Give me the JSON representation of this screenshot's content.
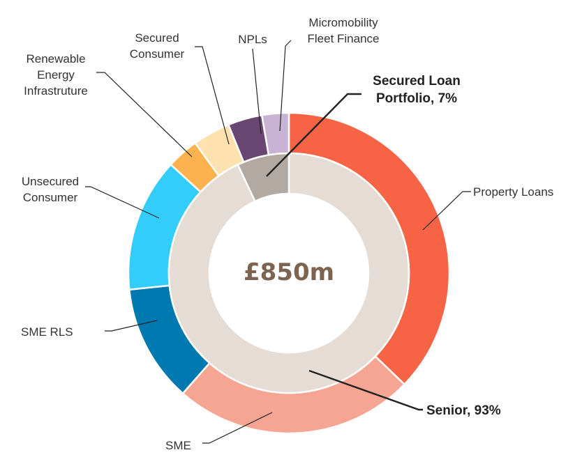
{
  "chart_data": {
    "type": "pie",
    "variant": "nested-donut",
    "center_label": "£850m",
    "outer_ring": {
      "slices": [
        {
          "name": "Property Loans",
          "value": 34.5,
          "color": "#f66445"
        },
        {
          "name": "SME",
          "value": 22.5,
          "color": "#f7a593"
        },
        {
          "name": "SME RLS",
          "value": 11.0,
          "color": "#0079b0"
        },
        {
          "name": "Unsecured Consumer",
          "value": 12.5,
          "color": "#33cdfc"
        },
        {
          "name": "Renewable Energy Infrastruture",
          "value": 3.0,
          "color": "#fbb24f"
        },
        {
          "name": "Secured Consumer",
          "value": 3.5,
          "color": "#fde2b0"
        },
        {
          "name": "NPLs",
          "value": 3.2,
          "color": "#6a4773"
        },
        {
          "name": "Micromobility Fleet Finance",
          "value": 2.5,
          "color": "#c8b3d4"
        }
      ]
    },
    "inner_ring": {
      "slices": [
        {
          "name": "Senior",
          "value": 93,
          "label": "Senior, 93%",
          "color": "#e6dcd6"
        },
        {
          "name": "Secured Loan Portfolio",
          "value": 7,
          "label_lines": [
            "Secured Loan",
            "Portfolio, 7%"
          ],
          "color": "#b3a9a3"
        }
      ]
    }
  }
}
